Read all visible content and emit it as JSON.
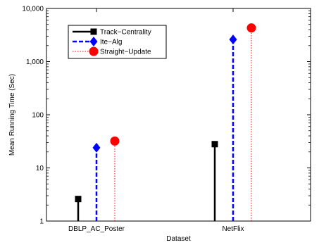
{
  "chart_data": {
    "type": "stem",
    "title": "",
    "xlabel": "Dataset",
    "ylabel": "Mean Running Time (Sec)",
    "yscale": "log",
    "ylim": [
      1,
      10000
    ],
    "yticks": [
      1,
      10,
      100,
      1000,
      10000
    ],
    "ytick_labels": [
      "1",
      "10",
      "100",
      "1,000",
      "10,000"
    ],
    "categories": [
      "DBLP_AC_Poster",
      "NetFlix"
    ],
    "grid": false,
    "legend_position": "top-left",
    "series": [
      {
        "name": "Track−Centrality",
        "color": "#000000",
        "line": "solid",
        "marker": "square",
        "values": [
          2.6,
          28
        ]
      },
      {
        "name": "Ite−Alg",
        "color": "#0000ff",
        "line": "dashed",
        "marker": "diamond",
        "values": [
          24,
          2600
        ]
      },
      {
        "name": "Straight−Update",
        "color": "#ff0000",
        "line": "dotted",
        "marker": "circle",
        "values": [
          32,
          4300
        ]
      }
    ]
  }
}
